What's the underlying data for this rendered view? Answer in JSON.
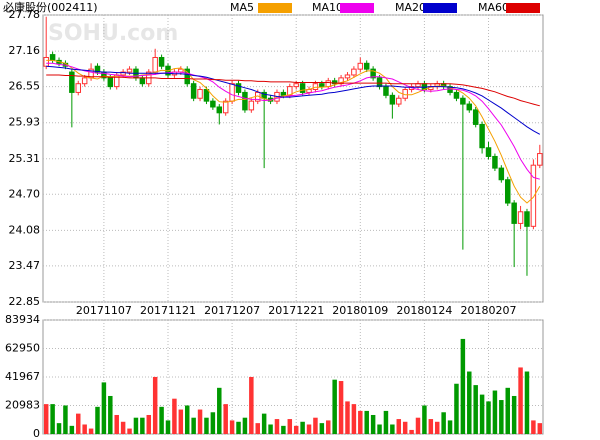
{
  "chart_data": {
    "type": "candlestick",
    "title": "必康股份(002411)",
    "watermark": "SOHU.com",
    "categories": [
      null,
      null,
      null,
      null,
      null,
      null,
      null,
      null,
      null,
      "20171107",
      null,
      null,
      null,
      null,
      null,
      null,
      null,
      null,
      null,
      "20171121",
      null,
      null,
      null,
      null,
      null,
      null,
      null,
      null,
      null,
      "20171207",
      null,
      null,
      null,
      null,
      null,
      null,
      null,
      null,
      null,
      "20171221",
      null,
      null,
      null,
      null,
      null,
      null,
      null,
      null,
      null,
      "20180109",
      null,
      null,
      null,
      null,
      null,
      null,
      null,
      null,
      null,
      "20180124",
      null,
      null,
      null,
      null,
      null,
      null,
      null,
      null,
      null,
      "20180207",
      null,
      null,
      null,
      null,
      null,
      null,
      null,
      null
    ],
    "open": [
      26.9,
      27.1,
      27.0,
      26.95,
      26.8,
      26.45,
      26.6,
      26.7,
      26.9,
      26.8,
      26.7,
      26.55,
      26.75,
      26.8,
      26.85,
      26.7,
      26.6,
      26.8,
      27.05,
      26.9,
      26.75,
      26.8,
      26.85,
      26.6,
      26.35,
      26.5,
      26.3,
      26.2,
      26.1,
      26.3,
      26.6,
      26.45,
      26.15,
      26.3,
      26.45,
      26.35,
      26.3,
      26.45,
      26.4,
      26.55,
      26.6,
      26.45,
      26.5,
      26.6,
      26.55,
      26.65,
      26.6,
      26.7,
      26.75,
      26.85,
      26.95,
      26.85,
      26.7,
      26.55,
      26.4,
      26.25,
      26.35,
      26.5,
      26.55,
      26.6,
      26.5,
      26.55,
      26.6,
      26.55,
      26.45,
      26.35,
      26.25,
      26.15,
      25.9,
      25.5,
      25.35,
      25.15,
      24.95,
      24.55,
      24.2,
      24.4,
      24.15,
      25.2
    ],
    "high": [
      27.75,
      27.15,
      27.05,
      27.0,
      26.85,
      26.65,
      26.75,
      26.95,
      26.95,
      26.85,
      26.75,
      26.8,
      26.85,
      26.9,
      26.9,
      26.75,
      26.85,
      27.2,
      27.1,
      26.95,
      26.85,
      26.9,
      26.9,
      26.65,
      26.55,
      26.55,
      26.35,
      26.25,
      26.35,
      26.65,
      26.65,
      26.5,
      26.35,
      26.5,
      26.5,
      26.4,
      26.5,
      26.5,
      26.6,
      26.65,
      26.65,
      26.55,
      26.65,
      26.65,
      26.7,
      26.7,
      26.75,
      26.8,
      26.9,
      27.05,
      27.0,
      26.9,
      26.75,
      26.6,
      26.45,
      26.4,
      26.55,
      26.6,
      26.65,
      26.65,
      26.6,
      26.65,
      26.65,
      26.6,
      26.5,
      26.4,
      26.3,
      26.2,
      25.95,
      25.6,
      25.4,
      25.2,
      25.0,
      24.6,
      24.5,
      24.45,
      25.3,
      25.55
    ],
    "low": [
      26.85,
      26.95,
      26.9,
      26.85,
      25.85,
      26.4,
      26.55,
      26.65,
      26.75,
      26.65,
      26.5,
      26.5,
      26.7,
      26.75,
      26.65,
      26.55,
      26.55,
      26.75,
      26.85,
      26.7,
      26.7,
      26.75,
      26.55,
      26.3,
      26.3,
      26.25,
      26.15,
      25.9,
      26.05,
      26.25,
      26.4,
      26.1,
      26.1,
      26.25,
      25.15,
      26.25,
      26.25,
      26.35,
      26.35,
      26.5,
      26.4,
      26.4,
      26.45,
      26.5,
      26.5,
      26.55,
      26.55,
      26.65,
      26.7,
      26.8,
      26.8,
      26.65,
      26.5,
      26.35,
      26.0,
      26.2,
      26.3,
      26.45,
      26.5,
      26.45,
      26.45,
      26.5,
      26.5,
      26.4,
      26.3,
      23.75,
      26.1,
      25.85,
      25.4,
      25.3,
      25.1,
      24.9,
      24.5,
      23.45,
      24.1,
      23.3,
      24.1,
      25.15
    ],
    "close": [
      27.05,
      27.0,
      26.95,
      26.9,
      26.45,
      26.6,
      26.7,
      26.85,
      26.8,
      26.7,
      26.55,
      26.75,
      26.8,
      26.85,
      26.7,
      26.6,
      26.8,
      27.05,
      26.9,
      26.75,
      26.8,
      26.85,
      26.6,
      26.35,
      26.5,
      26.3,
      26.2,
      26.1,
      26.3,
      26.6,
      26.45,
      26.15,
      26.3,
      26.45,
      26.35,
      26.3,
      26.45,
      26.4,
      26.55,
      26.6,
      26.45,
      26.5,
      26.6,
      26.55,
      26.65,
      26.6,
      26.7,
      26.75,
      26.85,
      26.95,
      26.85,
      26.7,
      26.55,
      26.4,
      26.25,
      26.35,
      26.5,
      26.55,
      26.6,
      26.5,
      26.55,
      26.6,
      26.55,
      26.45,
      26.35,
      26.25,
      26.15,
      25.9,
      25.5,
      25.35,
      25.15,
      24.95,
      24.55,
      24.2,
      24.4,
      24.15,
      25.2,
      25.4
    ],
    "volume": [
      22000,
      22000,
      8000,
      21000,
      6000,
      15000,
      7000,
      4000,
      20000,
      38000,
      28000,
      14000,
      9000,
      4000,
      12000,
      12000,
      14000,
      42000,
      20000,
      10000,
      26000,
      18000,
      21000,
      12000,
      18000,
      12000,
      16000,
      34000,
      22000,
      10000,
      9000,
      12000,
      42000,
      8000,
      15000,
      7000,
      11000,
      6000,
      11000,
      6000,
      9000,
      7000,
      12000,
      8000,
      10000,
      40000,
      39000,
      24000,
      22000,
      17000,
      17000,
      14000,
      7000,
      17000,
      7000,
      11000,
      9000,
      3000,
      12000,
      21000,
      11000,
      9000,
      16000,
      10000,
      37000,
      70000,
      46000,
      36000,
      29000,
      24000,
      32000,
      25000,
      34000,
      28000,
      49000,
      46000,
      10000,
      8000
    ],
    "series": [
      {
        "name": "MA5",
        "color": "#f5a000",
        "values": [
          27.0,
          27.0,
          26.98,
          26.95,
          26.87,
          26.78,
          26.72,
          26.7,
          26.68,
          26.73,
          26.72,
          26.73,
          26.73,
          26.73,
          26.73,
          26.75,
          26.76,
          26.8,
          26.83,
          26.82,
          26.86,
          26.87,
          26.8,
          26.67,
          26.62,
          26.52,
          26.39,
          26.29,
          26.28,
          26.3,
          26.33,
          26.33,
          26.36,
          26.39,
          26.34,
          26.31,
          26.37,
          26.39,
          26.41,
          26.46,
          26.49,
          26.5,
          26.54,
          26.54,
          26.55,
          26.58,
          26.62,
          26.65,
          26.71,
          26.77,
          26.82,
          26.82,
          26.78,
          26.7,
          26.55,
          26.45,
          26.41,
          26.41,
          26.45,
          26.5,
          26.54,
          26.56,
          26.56,
          26.53,
          26.5,
          26.44,
          26.35,
          26.22,
          26.03,
          25.82,
          25.61,
          25.37,
          25.1,
          24.84,
          24.65,
          24.55,
          24.65,
          24.84
        ]
      },
      {
        "name": "MA10",
        "color": "#ee00ee",
        "values": [
          26.95,
          26.95,
          26.93,
          26.92,
          26.89,
          26.85,
          26.82,
          26.8,
          26.78,
          26.78,
          26.76,
          26.75,
          26.73,
          26.72,
          26.73,
          26.74,
          26.75,
          26.76,
          26.78,
          26.79,
          26.8,
          26.8,
          26.78,
          26.75,
          26.72,
          26.69,
          26.63,
          26.54,
          26.47,
          26.41,
          26.38,
          26.35,
          26.33,
          26.33,
          26.31,
          26.32,
          26.35,
          26.37,
          26.39,
          26.4,
          26.42,
          26.44,
          26.46,
          26.48,
          26.51,
          26.54,
          26.56,
          26.58,
          26.61,
          26.65,
          26.7,
          26.72,
          26.72,
          26.7,
          26.68,
          26.63,
          26.58,
          26.53,
          26.5,
          26.48,
          26.47,
          26.48,
          26.5,
          26.51,
          26.5,
          26.49,
          26.45,
          26.39,
          26.3,
          26.17,
          26.03,
          25.89,
          25.71,
          25.52,
          25.3,
          25.13,
          24.99,
          24.96
        ]
      },
      {
        "name": "MA20",
        "color": "#0000cc",
        "values": [
          26.9,
          26.89,
          26.88,
          26.87,
          26.85,
          26.84,
          26.83,
          26.82,
          26.81,
          26.8,
          26.8,
          26.79,
          26.79,
          26.78,
          26.78,
          26.78,
          26.78,
          26.78,
          26.78,
          26.78,
          26.77,
          26.77,
          26.76,
          26.74,
          26.73,
          26.71,
          26.68,
          26.65,
          26.62,
          26.59,
          26.56,
          26.53,
          26.5,
          26.46,
          26.42,
          26.4,
          26.38,
          26.37,
          26.37,
          26.38,
          26.39,
          26.4,
          26.41,
          26.42,
          26.44,
          26.45,
          26.47,
          26.49,
          26.51,
          26.53,
          26.55,
          26.56,
          26.56,
          26.56,
          26.56,
          26.55,
          26.54,
          26.54,
          26.54,
          26.54,
          26.55,
          26.55,
          26.55,
          26.54,
          26.53,
          26.51,
          26.48,
          26.44,
          26.39,
          26.32,
          26.25,
          26.18,
          26.1,
          26.02,
          25.94,
          25.86,
          25.79,
          25.73
        ]
      },
      {
        "name": "MA60",
        "color": "#dd0000",
        "values": [
          26.75,
          26.75,
          26.75,
          26.74,
          26.74,
          26.73,
          26.73,
          26.72,
          26.72,
          26.72,
          26.71,
          26.71,
          26.71,
          26.7,
          26.7,
          26.7,
          26.7,
          26.7,
          26.69,
          26.69,
          26.69,
          26.69,
          26.69,
          26.68,
          26.68,
          26.68,
          26.67,
          26.67,
          26.66,
          26.66,
          26.66,
          26.65,
          26.65,
          26.64,
          26.64,
          26.63,
          26.63,
          26.63,
          26.63,
          26.62,
          26.62,
          26.62,
          26.62,
          26.62,
          26.62,
          26.61,
          26.61,
          26.61,
          26.61,
          26.61,
          26.61,
          26.61,
          26.61,
          26.61,
          26.6,
          26.6,
          26.6,
          26.6,
          26.6,
          26.6,
          26.6,
          26.6,
          26.6,
          26.6,
          26.59,
          26.58,
          26.56,
          26.54,
          26.52,
          26.49,
          26.46,
          26.42,
          26.38,
          26.35,
          26.31,
          26.28,
          26.25,
          26.22
        ]
      }
    ],
    "ylim": [
      22.85,
      27.78
    ],
    "yticks": [
      22.85,
      23.47,
      24.08,
      {
        "value": 24.7,
        "label": "24.70"
      },
      25.31,
      25.93,
      26.55,
      27.16,
      27.78
    ],
    "volume_ylim": [
      0,
      83934
    ],
    "volume_yticks": [
      0,
      20983,
      41967,
      62950,
      83934
    ],
    "up_color": "#ff3333",
    "down_color": "#009900",
    "grid": true
  }
}
